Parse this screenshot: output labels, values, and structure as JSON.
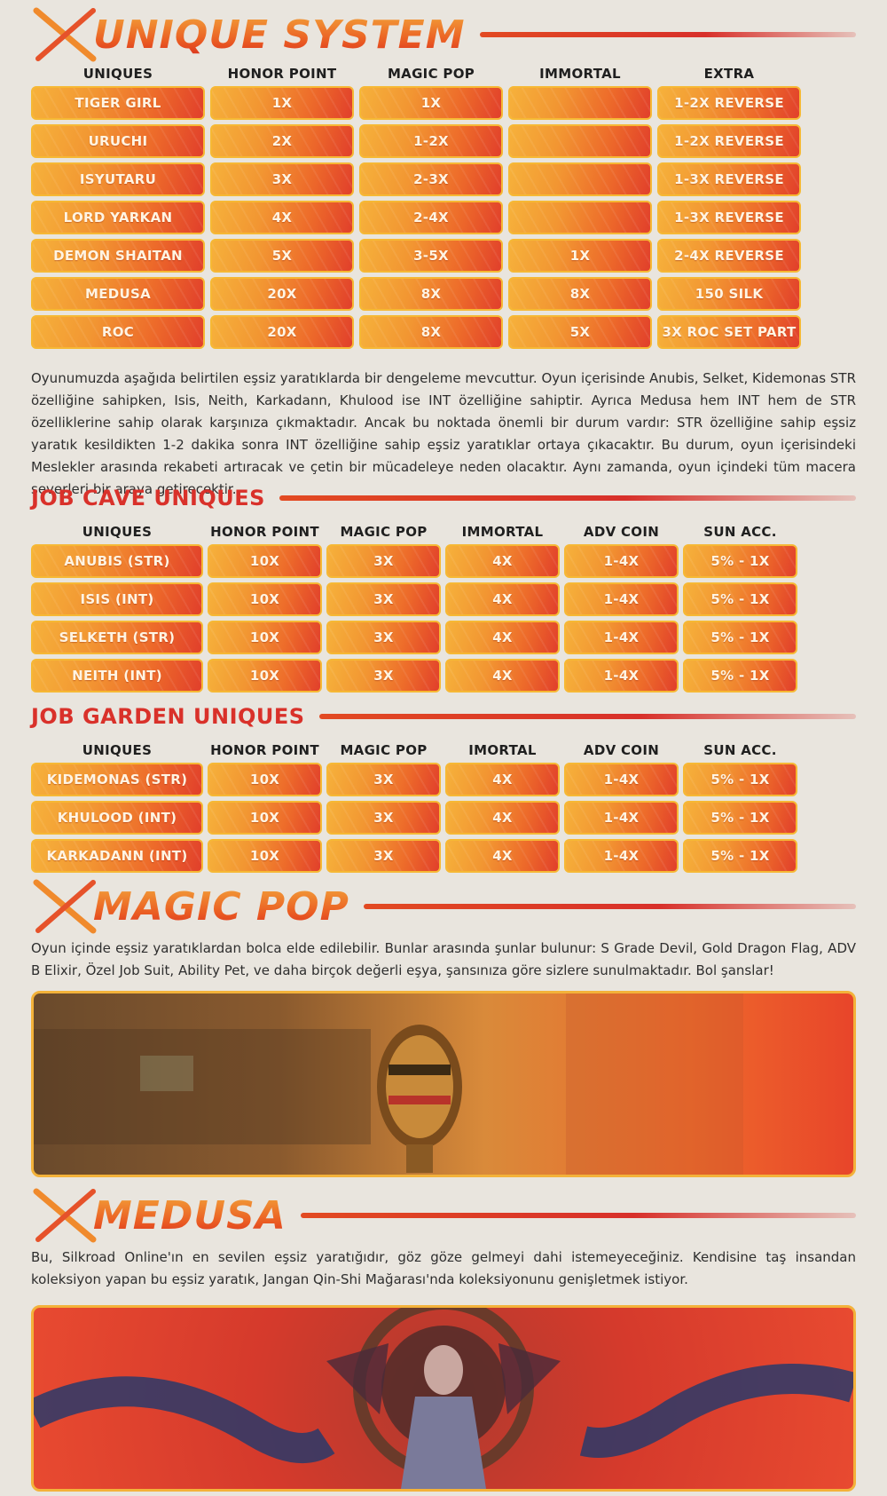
{
  "unique_system": {
    "title": "UNIQUE SYSTEM",
    "headers": [
      "UNIQUES",
      "HONOR POINT",
      "MAGIC POP",
      "IMMORTAL",
      "EXTRA"
    ],
    "rows": [
      [
        "TIGER GIRL",
        "1X",
        "1X",
        "",
        "1-2X REVERSE"
      ],
      [
        "URUCHI",
        "2X",
        "1-2X",
        "",
        "1-2X REVERSE"
      ],
      [
        "ISYUTARU",
        "3X",
        "2-3X",
        "",
        "1-3X REVERSE"
      ],
      [
        "LORD YARKAN",
        "4X",
        "2-4X",
        "",
        "1-3X REVERSE"
      ],
      [
        "DEMON SHAITAN",
        "5X",
        "3-5X",
        "1X",
        "2-4X REVERSE"
      ],
      [
        "MEDUSA",
        "20X",
        "8X",
        "8X",
        "150 SILK"
      ],
      [
        "ROC",
        "20X",
        "8X",
        "5X",
        "3X ROC SET PART"
      ]
    ],
    "paragraph": "Oyunumuzda aşağıda belirtilen eşsiz yaratıklarda bir dengeleme mevcuttur. Oyun içerisinde Anubis, Selket, Kidemonas STR özelliğine sahipken, Isis, Neith, Karkadann, Khulood ise INT özelliğine sahiptir. Ayrıca Medusa hem INT hem de STR özelliklerine sahip olarak karşınıza çıkmaktadır. Ancak bu noktada önemli bir durum vardır: STR özelliğine sahip eşsiz yaratık kesildikten 1-2 dakika sonra INT özelliğine sahip eşsiz yaratıklar ortaya çıkacaktır. Bu durum, oyun içerisindeki Meslekler arasında rekabeti artıracak ve çetin bir mücadeleye neden olacaktır. Aynı zamanda, oyun içindeki tüm macera severleri bir araya getirecektir."
  },
  "job_cave": {
    "title": "JOB CAVE UNIQUES",
    "headers": [
      "UNIQUES",
      "HONOR POINT",
      "MAGIC POP",
      "IMMORTAL",
      "ADV COIN",
      "SUN ACC."
    ],
    "rows": [
      [
        "ANUBIS (STR)",
        "10X",
        "3X",
        "4X",
        "1-4X",
        "5% - 1X"
      ],
      [
        "ISIS (INT)",
        "10X",
        "3X",
        "4X",
        "1-4X",
        "5% - 1X"
      ],
      [
        "SELKETH (STR)",
        "10X",
        "3X",
        "4X",
        "1-4X",
        "5% - 1X"
      ],
      [
        "NEITH (INT)",
        "10X",
        "3X",
        "4X",
        "1-4X",
        "5% - 1X"
      ]
    ]
  },
  "job_garden": {
    "title": "JOB GARDEN UNIQUES",
    "headers": [
      "UNIQUES",
      "HONOR POINT",
      "MAGIC POP",
      "IMORTAL",
      "ADV COIN",
      "SUN ACC."
    ],
    "rows": [
      [
        "KIDEMONAS (STR)",
        "10X",
        "3X",
        "4X",
        "1-4X",
        "5% - 1X"
      ],
      [
        "KHULOOD (INT)",
        "10X",
        "3X",
        "4X",
        "1-4X",
        "5% - 1X"
      ],
      [
        "KARKADANN (INT)",
        "10X",
        "3X",
        "4X",
        "1-4X",
        "5% - 1X"
      ]
    ]
  },
  "magic_pop": {
    "title": "MAGIC POP",
    "paragraph": "Oyun içinde eşsiz yaratıklardan bolca elde edilebilir. Bunlar arasında şunlar bulunur: S Grade Devil, Gold Dragon Flag, ADV B Elixir, Özel Job Suit, Ability Pet, ve daha birçok değerli eşya, şansınıza göre sizlere sunulmaktadır. Bol şanslar!"
  },
  "medusa": {
    "title": "MEDUSA",
    "paragraph": "Bu, Silkroad Online'ın en sevilen eşsiz yaratığıdır, göz göze gelmeyi dahi istemeyeceğiniz. Kendisine taş insandan koleksiyon yapan bu eşsiz yaratık, Jangan Qin-Shi Mağarası'nda koleksiyonunu genişletmek istiyor."
  },
  "colors": {
    "accent": "#ea5a22",
    "title_red": "#d9312a",
    "cell_border": "#f6b834",
    "background": "#e9e5de"
  },
  "icons": {
    "section_mark": "x-brush-icon"
  }
}
